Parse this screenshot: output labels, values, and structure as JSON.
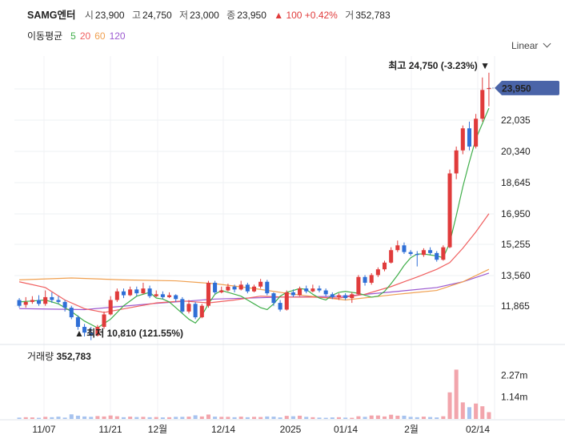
{
  "header": {
    "name": "SAMG엔터",
    "open_label": "시",
    "open": "23,900",
    "high_label": "고",
    "high": "24,750",
    "low_label": "저",
    "low": "23,000",
    "close_label": "종",
    "close": "23,950",
    "change": "▲ 100 +0.42%",
    "volume_label": "거",
    "volume": "352,783"
  },
  "moving_average": {
    "label": "이동평균",
    "periods": [
      {
        "period": "5",
        "color": "#3fae49"
      },
      {
        "period": "20",
        "color": "#f05f5f"
      },
      {
        "period": "60",
        "color": "#f0a050"
      },
      {
        "period": "120",
        "color": "#9b59d0"
      }
    ]
  },
  "scale_selector": "Linear",
  "price_axis": [
    "22,035",
    "20,340",
    "18,645",
    "16,950",
    "15,255",
    "13,560",
    "11,865"
  ],
  "current_price_tag": "23,950",
  "annotations": {
    "high": "최고 24,750 (-3.23%) ▼",
    "low": "▲ 최저 10,810 (121.55%)"
  },
  "volume_panel": {
    "title": "거래량",
    "value": "352,783",
    "axis": [
      "2.27m",
      "1.14m"
    ]
  },
  "x_axis": [
    "11/07",
    "11/21",
    "12월",
    "12/14",
    "2025",
    "01/14",
    "2월",
    "02/14"
  ],
  "colors": {
    "up": "#e03b3b",
    "down": "#2f6fd6",
    "tag": "#4a64a8"
  },
  "chart_data": {
    "type": "candlestick",
    "y_range": [
      11000,
      25200
    ],
    "candles": [
      [
        12900,
        12600,
        13000,
        12500
      ],
      [
        12650,
        12800,
        13050,
        12500
      ],
      [
        12800,
        12900,
        13100,
        12700
      ],
      [
        12900,
        12700,
        13150,
        12600
      ],
      [
        12700,
        13050,
        13400,
        12600
      ],
      [
        13050,
        12900,
        13300,
        12750
      ],
      [
        12900,
        12800,
        13100,
        12700
      ],
      [
        12800,
        12500,
        12900,
        12300
      ],
      [
        12500,
        12000,
        12600,
        11900
      ],
      [
        12000,
        11500,
        12100,
        11350
      ],
      [
        11500,
        11200,
        11650,
        11000
      ],
      [
        11200,
        11050,
        11500,
        10810
      ],
      [
        11050,
        11500,
        11600,
        11000
      ],
      [
        11500,
        12150,
        12300,
        11400
      ],
      [
        12150,
        12900,
        13100,
        12100
      ],
      [
        12900,
        13350,
        13500,
        12800
      ],
      [
        13350,
        13150,
        13500,
        13000
      ],
      [
        13150,
        13450,
        13600,
        13100
      ],
      [
        13450,
        13250,
        13600,
        13100
      ],
      [
        13250,
        13500,
        13800,
        13200
      ],
      [
        13500,
        13100,
        13650,
        13000
      ],
      [
        13100,
        13200,
        13400,
        13050
      ],
      [
        13200,
        13050,
        13350,
        12950
      ],
      [
        13050,
        13150,
        13300,
        13000
      ],
      [
        13150,
        12950,
        13200,
        12800
      ],
      [
        12950,
        12300,
        13050,
        12200
      ],
      [
        12300,
        12700,
        12900,
        12200
      ],
      [
        12700,
        12000,
        12800,
        11900
      ],
      [
        12000,
        12600,
        12700,
        11950
      ],
      [
        12600,
        13800,
        13900,
        12500
      ],
      [
        13800,
        13300,
        13900,
        13200
      ],
      [
        13300,
        13400,
        13600,
        13250
      ],
      [
        13400,
        13600,
        13750,
        13350
      ],
      [
        13600,
        13450,
        13700,
        13300
      ],
      [
        13450,
        13700,
        13900,
        13400
      ],
      [
        13700,
        13350,
        13800,
        13250
      ],
      [
        13350,
        13600,
        13700,
        13300
      ],
      [
        13600,
        13850,
        14000,
        13500
      ],
      [
        13850,
        13250,
        13950,
        13150
      ],
      [
        13250,
        12750,
        13300,
        12600
      ],
      [
        12750,
        12400,
        12900,
        12300
      ],
      [
        12400,
        13300,
        13400,
        12350
      ],
      [
        13300,
        13150,
        13450,
        13050
      ],
      [
        13150,
        13500,
        13600,
        13100
      ],
      [
        13500,
        13350,
        13650,
        13250
      ],
      [
        13350,
        13500,
        13700,
        13300
      ],
      [
        13500,
        13400,
        13650,
        13300
      ],
      [
        13400,
        13200,
        13500,
        13100
      ],
      [
        13200,
        13050,
        13300,
        12950
      ],
      [
        13050,
        13150,
        13250,
        12900
      ],
      [
        13150,
        13000,
        13250,
        12900
      ],
      [
        13000,
        13200,
        13300,
        12750
      ],
      [
        13200,
        14100,
        14200,
        13150
      ],
      [
        14100,
        13800,
        14200,
        13650
      ],
      [
        13800,
        14200,
        14300,
        13700
      ],
      [
        14200,
        14500,
        14600,
        14100
      ],
      [
        14500,
        14850,
        14950,
        14400
      ],
      [
        14850,
        15500,
        15650,
        14800
      ],
      [
        15500,
        15750,
        16000,
        15400
      ],
      [
        15750,
        15400,
        15900,
        15300
      ],
      [
        15400,
        15300,
        15500,
        15200
      ],
      [
        15300,
        15250,
        15450,
        14650
      ],
      [
        15250,
        15500,
        15600,
        15150
      ],
      [
        15500,
        15350,
        15650,
        15250
      ],
      [
        15350,
        15000,
        15450,
        14900
      ],
      [
        15000,
        15650,
        15750,
        14950
      ],
      [
        15650,
        19500,
        19700,
        15600
      ],
      [
        19500,
        20700,
        20900,
        19200
      ],
      [
        20700,
        21850,
        22000,
        20500
      ],
      [
        21850,
        20900,
        22200,
        20700
      ],
      [
        20900,
        22350,
        22600,
        20800
      ],
      [
        22350,
        23850,
        24500,
        22200
      ],
      [
        23900,
        23950,
        24750,
        23000
      ]
    ],
    "volume_max": 2950000,
    "volumes": [
      70000,
      90000,
      80000,
      60000,
      110000,
      90000,
      120000,
      70000,
      240000,
      170000,
      130000,
      110000,
      150000,
      130000,
      180000,
      140000,
      90000,
      120000,
      100000,
      110000,
      90000,
      100000,
      80000,
      90000,
      110000,
      110000,
      120000,
      190000,
      130000,
      230000,
      120000,
      110000,
      110000,
      90000,
      120000,
      90000,
      110000,
      100000,
      130000,
      120000,
      80000,
      160000,
      140000,
      170000,
      110000,
      90000,
      70000,
      60000,
      80000,
      90000,
      70000,
      60000,
      140000,
      110000,
      180000,
      180000,
      130000,
      220000,
      170000,
      170000,
      110000,
      90000,
      120000,
      100000,
      80000,
      140000,
      1380000,
      2560000,
      860000,
      610000,
      800000,
      660000,
      352783
    ],
    "ma5": [
      [
        12700,
        13000
      ],
      [
        12750,
        12950
      ],
      [
        12600,
        12800
      ],
      [
        12300,
        12500
      ],
      [
        12000,
        12200
      ],
      [
        11700,
        11900
      ],
      [
        11600,
        11700
      ],
      [
        11700,
        12100
      ],
      [
        12100,
        12700
      ],
      [
        12500,
        13200
      ],
      [
        12800,
        13400
      ],
      [
        13100,
        13300
      ],
      [
        13200,
        13200
      ],
      [
        13250,
        13100
      ],
      [
        13200,
        12900
      ],
      [
        13100,
        12700
      ],
      [
        12900,
        12500
      ],
      [
        12700,
        12400
      ],
      [
        12500,
        12700
      ],
      [
        12400,
        13100
      ],
      [
        12600,
        13300
      ],
      [
        12900,
        13400
      ],
      [
        13100,
        13500
      ],
      [
        13300,
        13450
      ],
      [
        13400,
        13200
      ],
      [
        13400,
        13000
      ],
      [
        13200,
        12900
      ],
      [
        12900,
        13150
      ],
      [
        12800,
        13300
      ],
      [
        13000,
        13350
      ],
      [
        13200,
        13300
      ],
      [
        13300,
        13250
      ],
      [
        13300,
        13150
      ],
      [
        13200,
        13050
      ],
      [
        13100,
        13100
      ],
      [
        13050,
        13350
      ],
      [
        13100,
        13750
      ],
      [
        13300,
        14200
      ],
      [
        13700,
        14700
      ],
      [
        14200,
        15100
      ],
      [
        14700,
        15300
      ],
      [
        15100,
        15300
      ],
      [
        15250,
        15250
      ],
      [
        15300,
        15200
      ],
      [
        15250,
        15100
      ],
      [
        15200,
        15900
      ],
      [
        15400,
        17300
      ],
      [
        16200,
        18800
      ],
      [
        17400,
        20100
      ],
      [
        18800,
        21300
      ],
      [
        20000,
        22100
      ],
      [
        21300,
        22900
      ]
    ],
    "ma_lines": {
      "ma20": [
        [
          0,
          13850
        ],
        [
          4,
          13550
        ],
        [
          7,
          12900
        ],
        [
          10,
          12450
        ],
        [
          13,
          12250
        ],
        [
          17,
          12500
        ],
        [
          21,
          12750
        ],
        [
          25,
          12850
        ],
        [
          29,
          12750
        ],
        [
          33,
          12900
        ],
        [
          37,
          13100
        ],
        [
          41,
          13050
        ],
        [
          45,
          13050
        ],
        [
          49,
          13000
        ],
        [
          53,
          13200
        ],
        [
          57,
          13600
        ],
        [
          61,
          14100
        ],
        [
          64,
          14500
        ],
        [
          66,
          14850
        ],
        [
          68,
          15600
        ],
        [
          70,
          16450
        ],
        [
          72,
          17400
        ]
      ],
      "ma60": [
        [
          0,
          13950
        ],
        [
          8,
          14050
        ],
        [
          16,
          13950
        ],
        [
          24,
          13900
        ],
        [
          30,
          13750
        ],
        [
          36,
          13500
        ],
        [
          42,
          13200
        ],
        [
          50,
          12900
        ],
        [
          58,
          13200
        ],
        [
          64,
          13400
        ],
        [
          68,
          13850
        ],
        [
          72,
          14500
        ]
      ],
      "ma120": [
        [
          0,
          12450
        ],
        [
          10,
          12400
        ],
        [
          20,
          12700
        ],
        [
          30,
          12950
        ],
        [
          40,
          13050
        ],
        [
          50,
          13100
        ],
        [
          58,
          13350
        ],
        [
          64,
          13550
        ],
        [
          68,
          13850
        ],
        [
          72,
          14300
        ]
      ]
    }
  }
}
